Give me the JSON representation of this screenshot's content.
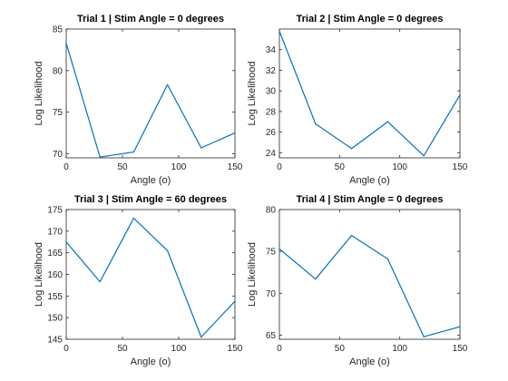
{
  "chart_data": [
    {
      "type": "line",
      "title": "Trial 1 | Stim Angle = 0 degrees",
      "xlabel": "Angle (o)",
      "ylabel": "Log Likelihood",
      "xlim": [
        0,
        150
      ],
      "ylim": [
        69.5,
        85
      ],
      "xticks": [
        0,
        50,
        100,
        150
      ],
      "yticks": [
        70,
        75,
        80,
        85
      ],
      "grid": false,
      "series": [
        {
          "x": [
            0,
            30,
            60,
            90,
            120,
            150
          ],
          "values": [
            83.3,
            69.6,
            70.2,
            78.3,
            70.7,
            72.5
          ],
          "color": "#0072bd"
        }
      ]
    },
    {
      "type": "line",
      "title": "Trial 2 | Stim Angle = 0 degrees",
      "xlabel": "Angle (o)",
      "ylabel": "Log Likelihood",
      "xlim": [
        0,
        150
      ],
      "ylim": [
        23.5,
        36
      ],
      "xticks": [
        0,
        50,
        100,
        150
      ],
      "yticks": [
        24,
        26,
        28,
        30,
        32,
        34
      ],
      "grid": false,
      "series": [
        {
          "x": [
            0,
            30,
            60,
            90,
            120,
            150
          ],
          "values": [
            35.8,
            26.8,
            24.4,
            27.0,
            23.7,
            29.6
          ],
          "color": "#0072bd"
        }
      ]
    },
    {
      "type": "line",
      "title": "Trial 3 | Stim Angle = 60 degrees",
      "xlabel": "Angle (o)",
      "ylabel": "Log Likelihood",
      "xlim": [
        0,
        150
      ],
      "ylim": [
        145,
        175
      ],
      "xticks": [
        0,
        50,
        100,
        150
      ],
      "yticks": [
        145,
        150,
        155,
        160,
        165,
        170,
        175
      ],
      "grid": false,
      "series": [
        {
          "x": [
            0,
            30,
            60,
            90,
            120,
            150
          ],
          "values": [
            167.5,
            158.3,
            173.0,
            165.5,
            145.5,
            153.8
          ],
          "color": "#0072bd"
        }
      ]
    },
    {
      "type": "line",
      "title": "Trial 4 | Stim Angle = 0 degrees",
      "xlabel": "Angle (o)",
      "ylabel": "Log Likelihood",
      "xlim": [
        0,
        150
      ],
      "ylim": [
        64.5,
        80
      ],
      "xticks": [
        0,
        50,
        100,
        150
      ],
      "yticks": [
        65,
        70,
        75,
        80
      ],
      "grid": false,
      "series": [
        {
          "x": [
            0,
            30,
            60,
            90,
            120,
            150
          ],
          "values": [
            75.3,
            71.7,
            76.9,
            74.1,
            64.8,
            66.0
          ],
          "color": "#0072bd"
        }
      ]
    }
  ]
}
